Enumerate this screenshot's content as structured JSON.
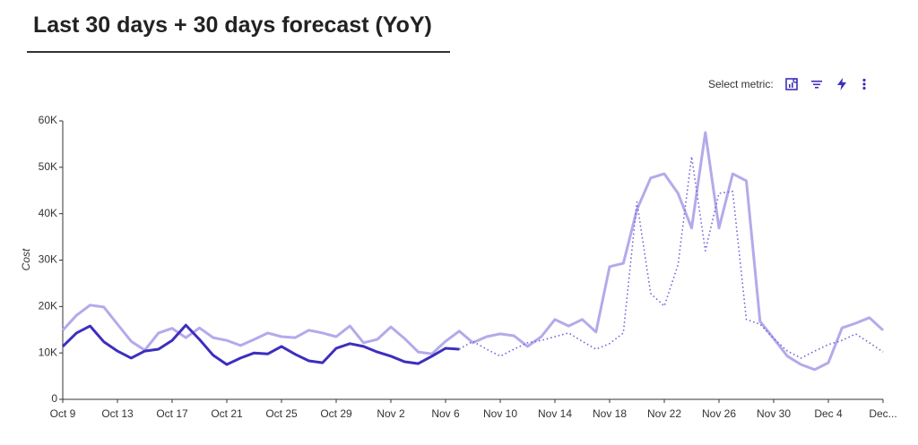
{
  "chart_data": {
    "type": "line",
    "title": "Last 30 days + 30 days forecast (YoY)",
    "toolbar_label": "Select metric:",
    "y_label": "Cost",
    "categories": [
      "Oct 9",
      null,
      null,
      null,
      "Oct 13",
      null,
      null,
      null,
      "Oct 17",
      null,
      null,
      null,
      "Oct 21",
      null,
      null,
      null,
      "Oct 25",
      null,
      null,
      null,
      "Oct 29",
      null,
      null,
      null,
      "Nov 2",
      null,
      null,
      null,
      "Nov 6",
      null,
      null,
      null,
      "Nov 10",
      null,
      null,
      null,
      "Nov 14",
      null,
      null,
      null,
      "Nov 18",
      null,
      null,
      null,
      "Nov 22",
      null,
      null,
      null,
      "Nov 26",
      null,
      null,
      null,
      "Nov 30",
      null,
      null,
      null,
      "Dec 4",
      null,
      null,
      null,
      "Dec..."
    ],
    "ylim": [
      0,
      60000
    ],
    "yticks": [
      0,
      {
        "value": 10000,
        "label": "10K"
      },
      {
        "value": 20000,
        "label": "20K"
      },
      {
        "value": 30000,
        "label": "30K"
      },
      {
        "value": 40000,
        "label": "40K"
      },
      {
        "value": 50000,
        "label": "50K"
      },
      {
        "value": 60000,
        "label": "60K"
      }
    ],
    "series": [
      {
        "color": "#b4aaea",
        "dashed": false,
        "values": [
          14900,
          18100,
          20300,
          19900,
          16200,
          12500,
          10600,
          14300,
          15300,
          13300,
          15400,
          13300,
          12700,
          11600,
          12900,
          14300,
          13500,
          13300,
          14900,
          14300,
          13500,
          15800,
          12200,
          12900,
          15600,
          13100,
          10200,
          9800,
          12500,
          14700,
          12200,
          13500,
          14100,
          13700,
          11400,
          13500,
          17200,
          15800,
          17200,
          14500,
          28600,
          29300,
          40900,
          47700,
          48600,
          44400,
          36900,
          57500,
          36900,
          48600,
          47100,
          16800,
          13100,
          9300,
          7500,
          6400,
          7900,
          15400,
          16400,
          17600,
          14900
        ]
      },
      {
        "color": "#3c2fbd",
        "dashed": false,
        "values": [
          11400,
          14300,
          15800,
          12400,
          10400,
          8900,
          10400,
          10800,
          12700,
          16000,
          12900,
          9500,
          7500,
          8900,
          10000,
          9800,
          11400,
          9700,
          8300,
          7900,
          11000,
          12000,
          11400,
          10200,
          9300,
          8100,
          7700,
          9300,
          11000,
          10800,
          null,
          null,
          null,
          null,
          null,
          null,
          null,
          null,
          null,
          null,
          null,
          null,
          null,
          null,
          null,
          null,
          null,
          null,
          null,
          null,
          null,
          null,
          null,
          null,
          null,
          null,
          null,
          null,
          null,
          null,
          null
        ]
      },
      {
        "color": "#6f62d8",
        "dashed": true,
        "values": [
          null,
          null,
          null,
          null,
          null,
          null,
          null,
          null,
          null,
          null,
          null,
          null,
          null,
          null,
          null,
          null,
          null,
          null,
          null,
          null,
          null,
          null,
          null,
          null,
          null,
          null,
          null,
          null,
          null,
          10800,
          12500,
          10800,
          9300,
          10800,
          12200,
          12700,
          13500,
          14300,
          12500,
          10800,
          12000,
          14300,
          42500,
          22800,
          20100,
          29000,
          52300,
          32000,
          44400,
          44800,
          17200,
          16200,
          13100,
          10400,
          8900,
          10400,
          11800,
          12700,
          14100,
          12200,
          10200
        ]
      }
    ]
  }
}
